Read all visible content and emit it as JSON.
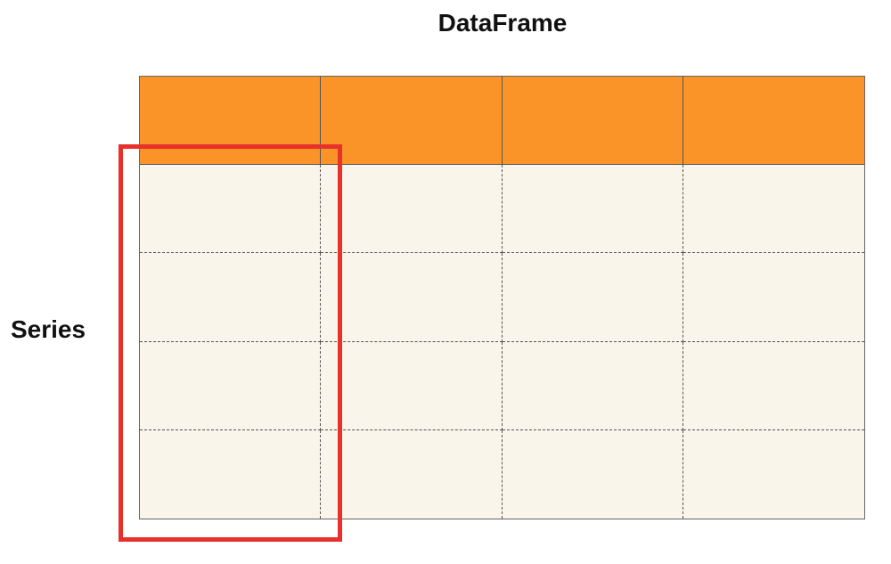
{
  "diagram": {
    "title": "DataFrame",
    "series_label": "Series",
    "columns": 4,
    "header_rows": 1,
    "data_rows": 4,
    "highlighted_column": 1,
    "colors": {
      "header": "#fb9428",
      "cells": "#f9f5ea",
      "highlight": "#e8312a",
      "grid_lines": "#555555"
    }
  }
}
